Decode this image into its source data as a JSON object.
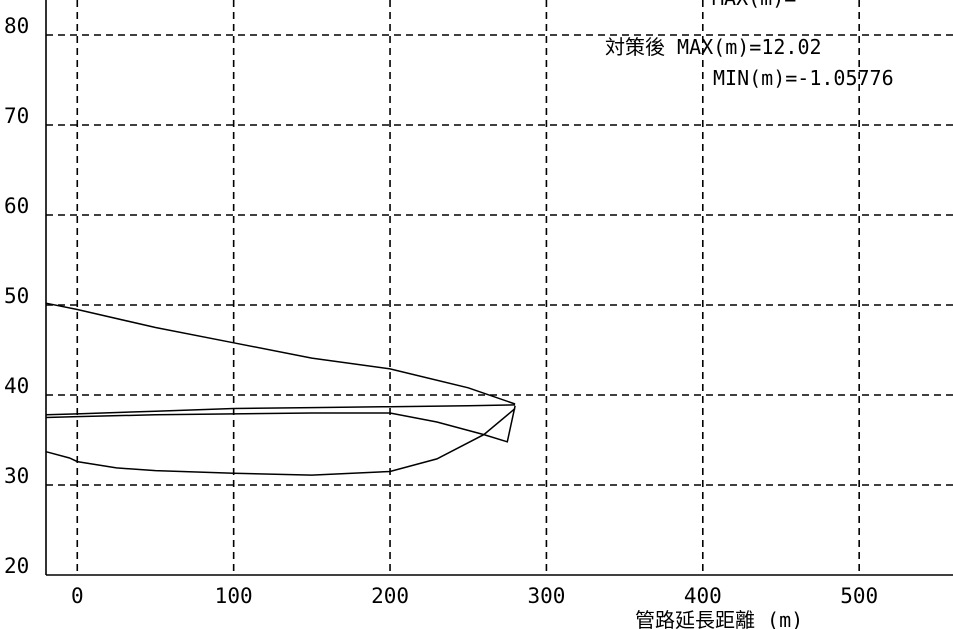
{
  "chart_data": {
    "type": "line",
    "xlabel": "管路延長距離 (m)",
    "ylabel": "",
    "xlim": [
      -20,
      560
    ],
    "ylim": [
      20,
      80
    ],
    "x_ticks": [
      "0",
      "100",
      "200",
      "300",
      "400",
      "500"
    ],
    "y_ticks": [
      "20",
      "30",
      "40",
      "50",
      "60",
      "70",
      "80"
    ],
    "grid": true,
    "annotations": {
      "top_partial": "MAX(m)=",
      "max_text": "対策後 MAX(m)=12.02",
      "min_text": "MIN(m)=-1.05776"
    },
    "series": [
      {
        "x": [
          -20,
          0,
          50,
          100,
          150,
          200,
          250,
          280
        ],
        "y": [
          50.2,
          49.5,
          47.5,
          45.8,
          44.1,
          42.9,
          40.8,
          39.0
        ]
      },
      {
        "x": [
          -20,
          0,
          50,
          100,
          150,
          200,
          250,
          280
        ],
        "y": [
          37.8,
          37.9,
          38.2,
          38.5,
          38.6,
          38.7,
          38.8,
          38.9
        ]
      },
      {
        "x": [
          -20,
          0,
          50,
          100,
          150,
          200,
          230,
          260,
          275,
          280
        ],
        "y": [
          37.5,
          37.6,
          37.8,
          37.9,
          38.0,
          38.0,
          37.0,
          35.6,
          34.8,
          38.8
        ]
      },
      {
        "x": [
          -20,
          -5,
          0,
          25,
          50,
          100,
          150,
          200,
          230,
          260,
          280
        ],
        "y": [
          33.7,
          33.0,
          32.6,
          31.9,
          31.6,
          31.3,
          31.1,
          31.5,
          32.9,
          35.6,
          38.5
        ]
      }
    ]
  }
}
